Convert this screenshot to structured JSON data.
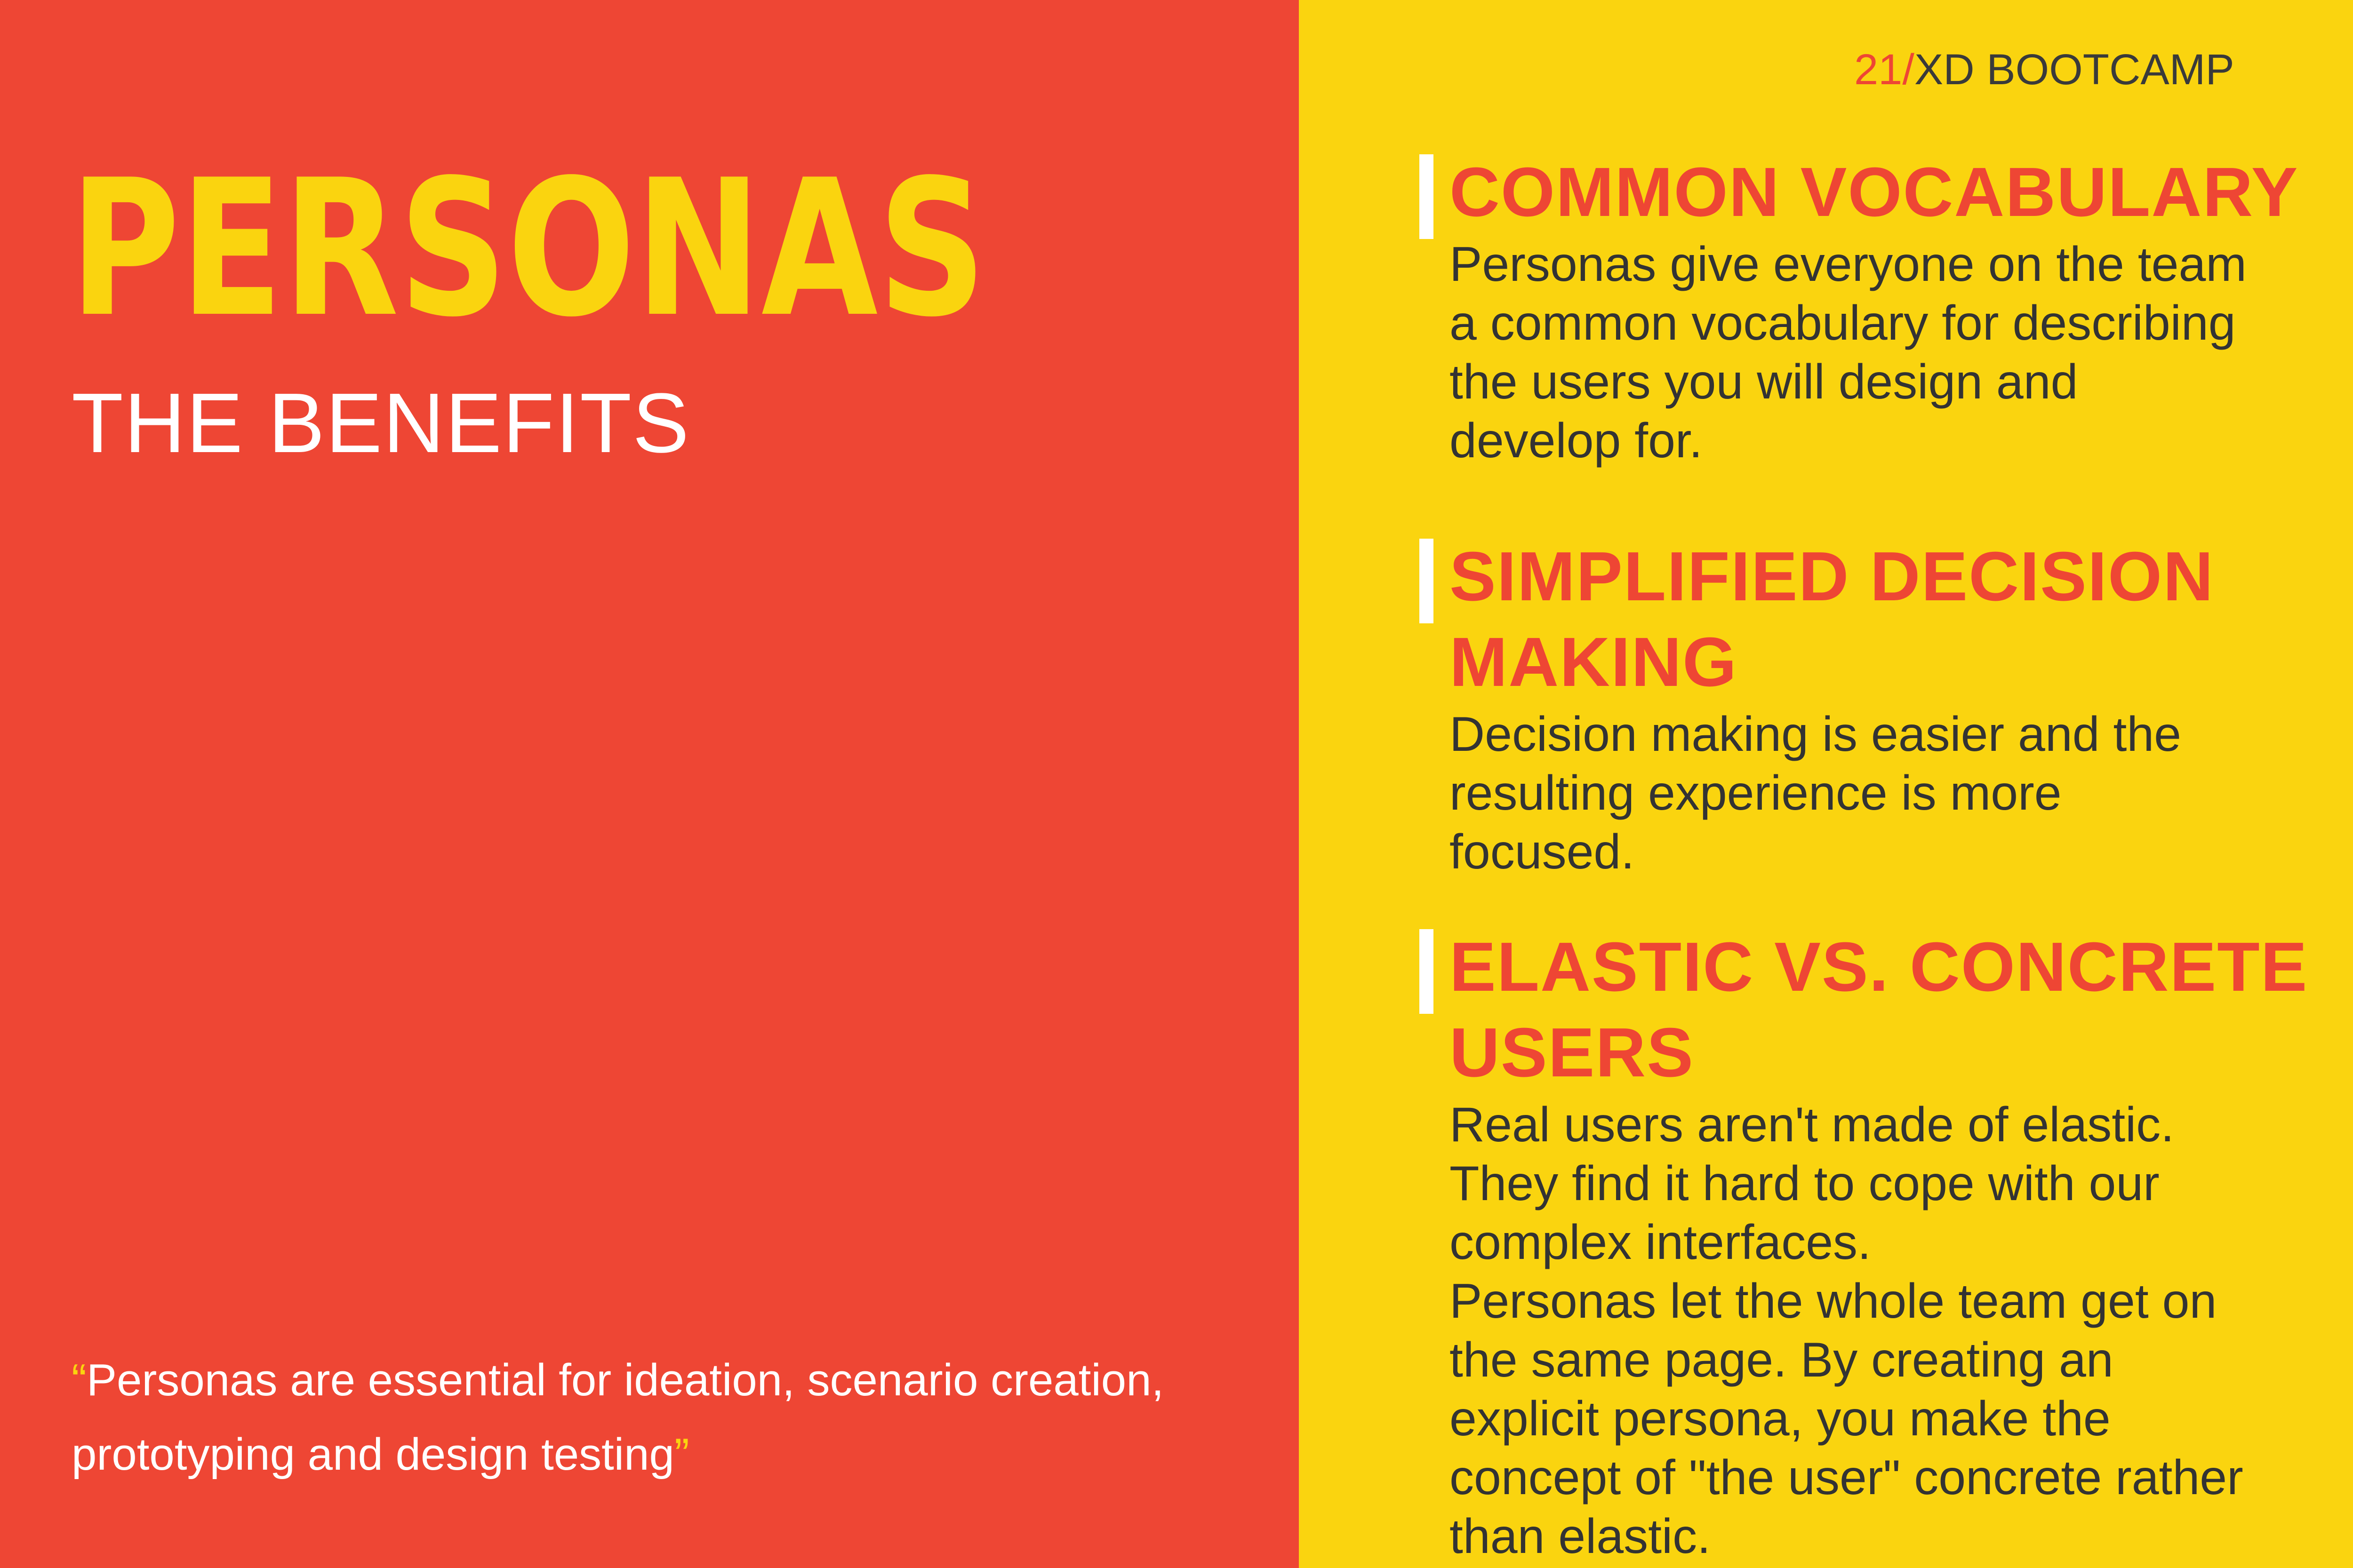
{
  "left": {
    "title": "PERSONAS",
    "subtitle": "THE BENEFITS",
    "quote": {
      "open_mark": "“",
      "text": "Personas are essential for ideation, scenario creation, prototyping and design testing",
      "close_mark": "”"
    }
  },
  "brand": {
    "number": "21/",
    "name": "XD BOOTCAMP"
  },
  "sections": [
    {
      "title": "COMMON VOCABULARY",
      "body": "Personas give everyone on the team\na common vocabulary for describing\nthe users you will design and\ndevelop for."
    },
    {
      "title": "SIMPLIFIED DECISION MAKING",
      "body": "Decision making is easier and the\nresulting experience is more\nfocused."
    },
    {
      "title": "ELASTIC VS. CONCRETE USERS",
      "body": "Real users aren't made of elastic.\nThey find it hard to cope with our\ncomplex interfaces.\nPersonas let the whole team get on\nthe same page. By creating an\nexplicit persona, you make the\nconcept of \"the user\" concrete rather\nthan elastic."
    }
  ],
  "colors": {
    "red": "#EE4634",
    "yellow": "#FAD40F",
    "white": "#FFFFFF",
    "text_dark": "#333333"
  }
}
